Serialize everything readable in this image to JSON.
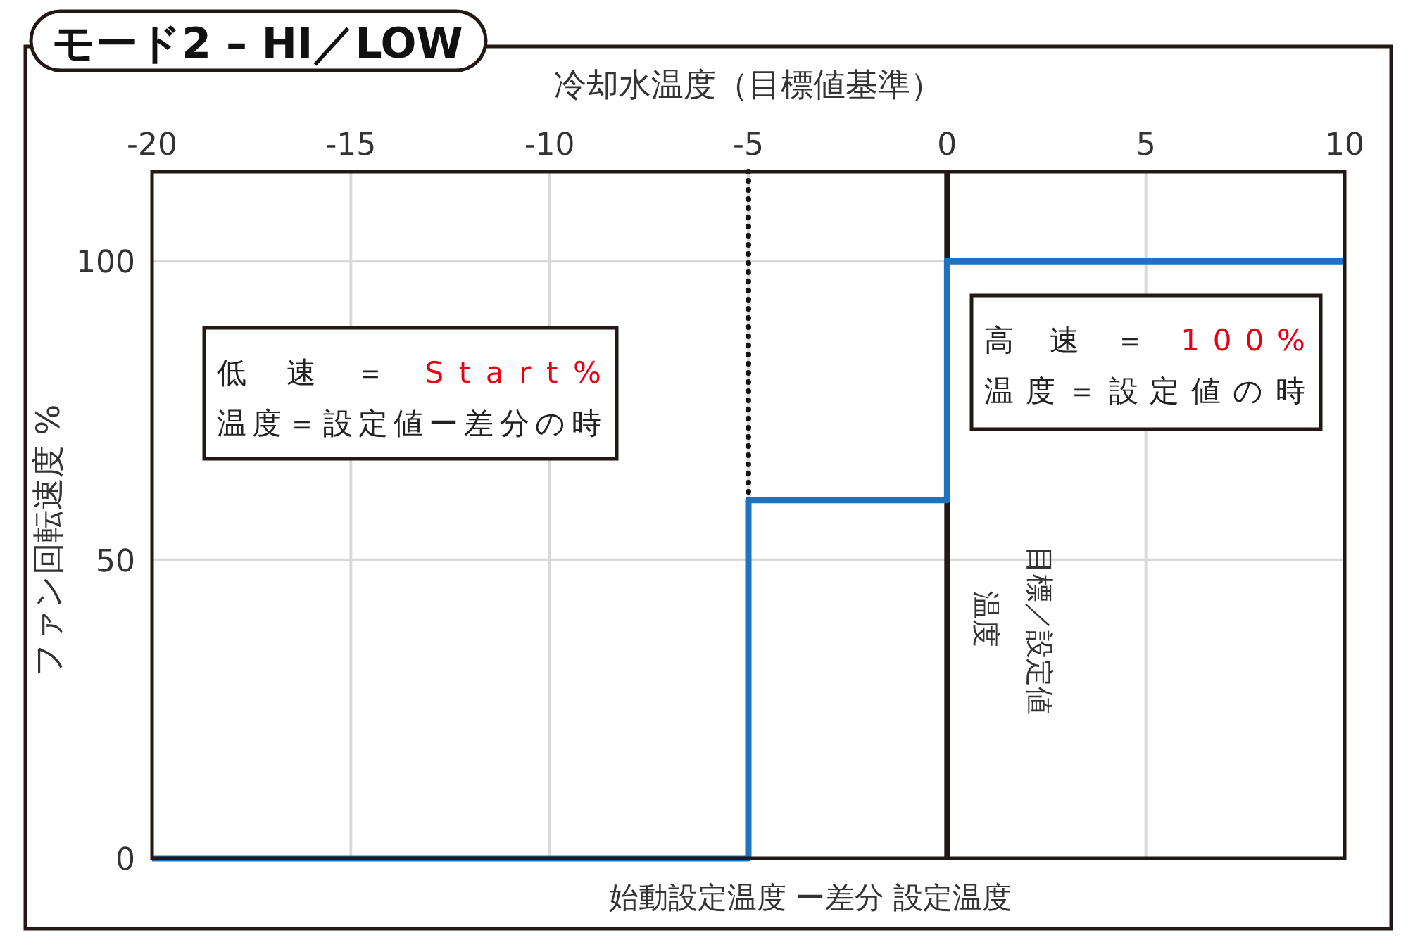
{
  "chart_data": {
    "type": "step",
    "title": "モード2 – HI／LOW",
    "xlabel": "冷却水温度（目標値基準）",
    "ylabel": "ファン回転速度 %",
    "xlim": [
      -20,
      10
    ],
    "xticks": [
      -20,
      -15,
      -10,
      -5,
      0,
      5,
      10
    ],
    "ylim": [
      0,
      115
    ],
    "yticks": [
      0,
      50,
      100
    ],
    "grid": true,
    "series": [
      {
        "color": "#1f72bd",
        "x": [
          -20,
          -5,
          0,
          10
        ],
        "values": [
          0,
          60,
          100,
          100
        ]
      }
    ],
    "ref_lines": [
      {
        "axis": "x",
        "value": -5,
        "color": "#111111",
        "line_style": "dotted"
      },
      {
        "axis": "x",
        "value": 0,
        "color": "#231815",
        "line_style": "solid",
        "label": "目標／設定値温度"
      }
    ],
    "annotations": [
      "低 速 ＝ Start%\n温度＝設定値ー差分の時",
      "高 速 ＝ 100%\n温度＝設定値の時",
      "始動設定温度 ー差分 設定温度"
    ]
  }
}
